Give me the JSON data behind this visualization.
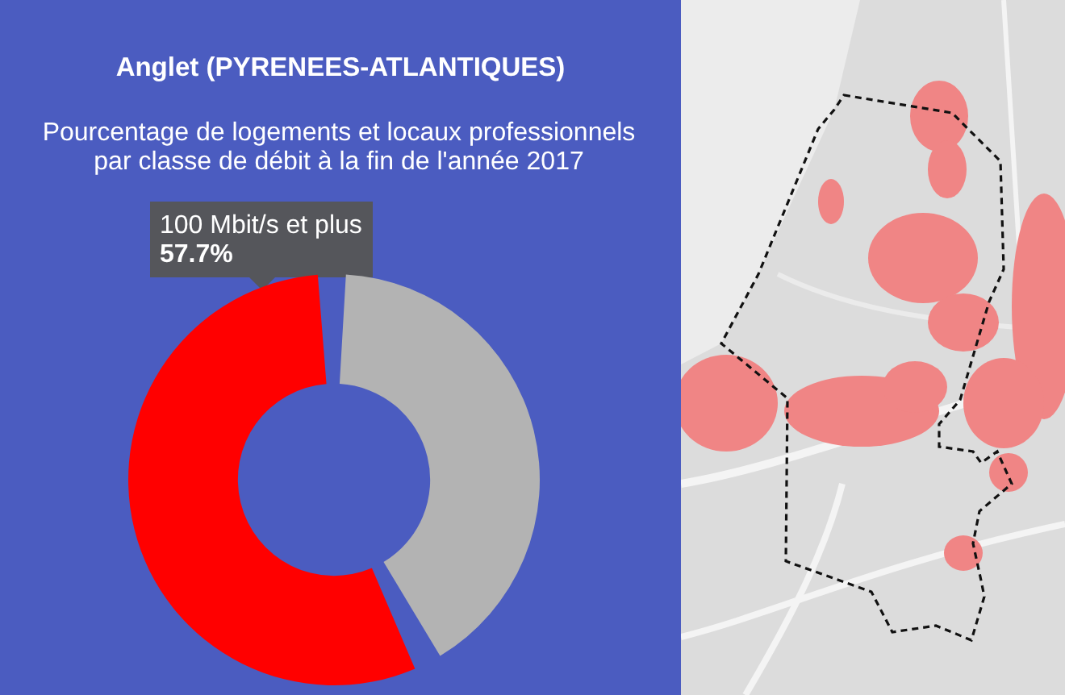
{
  "chart_data": {
    "type": "donut",
    "title": "Anglet (PYRENEES-ATLANTIQUES)",
    "subtitle": "Pourcentage de logements et locaux professionnels par classe de débit à la fin de l'année 2017",
    "categories": [
      null,
      "100 Mbit/s et plus"
    ],
    "values": [
      42.3,
      57.7
    ],
    "colors": [
      "#b3b3b3",
      "#ff0000"
    ],
    "value_labels": [
      null,
      "57.7%"
    ]
  }
}
